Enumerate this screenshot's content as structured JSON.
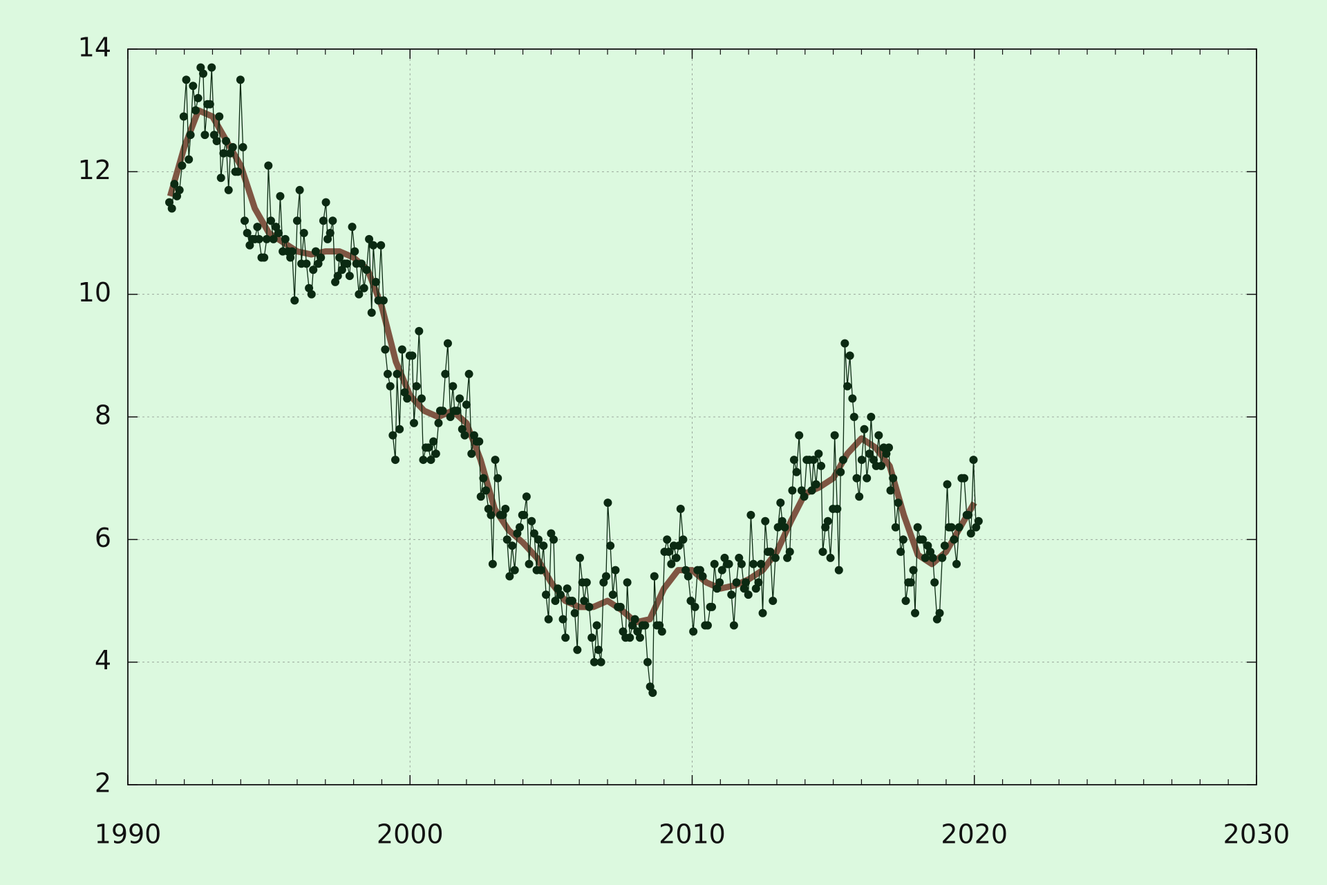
{
  "chart_data": {
    "type": "line",
    "xlim": [
      1990,
      2030
    ],
    "xticks": [
      1990,
      2000,
      2010,
      2020,
      2030
    ],
    "ylim": [
      2,
      14
    ],
    "yticks": [
      2,
      4,
      6,
      8,
      10,
      12,
      14
    ],
    "grid": true,
    "series": [
      {
        "color": "#0b2a12",
        "markers": true,
        "x": [
          1991.47,
          1991.56,
          1991.65,
          1991.74,
          1991.83,
          1991.92,
          1991.98,
          1992.07,
          1992.16,
          1992.22,
          1992.31,
          1992.4,
          1992.49,
          1992.58,
          1992.67,
          1992.73,
          1992.82,
          1992.91,
          1992.97,
          1993.06,
          1993.15,
          1993.24,
          1993.3,
          1993.39,
          1993.48,
          1993.57,
          1993.63,
          1993.72,
          1993.81,
          1993.9,
          1993.99,
          1994.08,
          1994.14,
          1994.23,
          1994.32,
          1994.41,
          1994.5,
          1994.59,
          1994.65,
          1994.74,
          1994.83,
          1994.92,
          1994.98,
          1995.07,
          1995.16,
          1995.25,
          1995.34,
          1995.4,
          1995.49,
          1995.58,
          1995.67,
          1995.76,
          1995.82,
          1995.91,
          1996.0,
          1996.09,
          1996.15,
          1996.24,
          1996.33,
          1996.42,
          1996.51,
          1996.57,
          1996.66,
          1996.75,
          1996.84,
          1996.93,
          1997.02,
          1997.08,
          1997.17,
          1997.26,
          1997.35,
          1997.44,
          1997.5,
          1997.59,
          1997.68,
          1997.77,
          1997.86,
          1997.95,
          1998.04,
          1998.1,
          1998.19,
          1998.28,
          1998.37,
          1998.46,
          1998.55,
          1998.64,
          1998.7,
          1998.79,
          1998.88,
          1998.97,
          1999.06,
          1999.12,
          1999.21,
          1999.3,
          1999.39,
          1999.48,
          1999.54,
          1999.63,
          1999.72,
          1999.81,
          1999.9,
          1999.99,
          2000.08,
          2000.14,
          2000.23,
          2000.32,
          2000.41,
          2000.47,
          2000.56,
          2000.65,
          2000.74,
          2000.83,
          2000.92,
          2001.01,
          2001.07,
          2001.16,
          2001.25,
          2001.34,
          2001.43,
          2001.52,
          2001.58,
          2001.67,
          2001.76,
          2001.85,
          2001.94,
          2002.0,
          2002.09,
          2002.18,
          2002.27,
          2002.36,
          2002.45,
          2002.51,
          2002.6,
          2002.69,
          2002.78,
          2002.87,
          2002.93,
          2003.02,
          2003.11,
          2003.2,
          2003.29,
          2003.38,
          2003.44,
          2003.53,
          2003.62,
          2003.71,
          2003.8,
          2003.89,
          2003.98,
          2004.04,
          2004.13,
          2004.22,
          2004.31,
          2004.4,
          2004.49,
          2004.55,
          2004.64,
          2004.73,
          2004.82,
          2004.91,
          2005.0,
          2005.09,
          2005.15,
          2005.24,
          2005.33,
          2005.42,
          2005.51,
          2005.57,
          2005.66,
          2005.75,
          2005.84,
          2005.93,
          2006.02,
          2006.11,
          2006.17,
          2006.26,
          2006.35,
          2006.44,
          2006.53,
          2006.62,
          2006.68,
          2006.77,
          2006.86,
          2006.95,
          2007.01,
          2007.1,
          2007.19,
          2007.28,
          2007.37,
          2007.46,
          2007.55,
          2007.64,
          2007.7,
          2007.79,
          2007.88,
          2007.97,
          2008.06,
          2008.15,
          2008.24,
          2008.33,
          2008.42,
          2008.51,
          2008.6,
          2008.66,
          2008.75,
          2008.84,
          2008.93,
          2009.02,
          2009.11,
          2009.17,
          2009.26,
          2009.35,
          2009.44,
          2009.53,
          2009.59,
          2009.68,
          2009.77,
          2009.86,
          2009.95,
          2010.04,
          2010.1,
          2010.19,
          2010.28,
          2010.37,
          2010.46,
          2010.55,
          2010.64,
          2010.7,
          2010.79,
          2010.88,
          2010.97,
          2011.06,
          2011.15,
          2011.24,
          2011.3,
          2011.39,
          2011.48,
          2011.57,
          2011.66,
          2011.75,
          2011.84,
          2011.9,
          2011.99,
          2012.08,
          2012.17,
          2012.26,
          2012.35,
          2012.44,
          2012.5,
          2012.59,
          2012.68,
          2012.77,
          2012.86,
          2012.95,
          2013.04,
          2013.13,
          2013.19,
          2013.28,
          2013.37,
          2013.46,
          2013.55,
          2013.61,
          2013.7,
          2013.79,
          2013.88,
          2013.97,
          2014.06,
          2014.15,
          2014.24,
          2014.3,
          2014.39,
          2014.48,
          2014.57,
          2014.63,
          2014.72,
          2014.81,
          2014.9,
          2014.99,
          2015.05,
          2015.14,
          2015.2,
          2015.26,
          2015.35,
          2015.41,
          2015.5,
          2015.59,
          2015.68,
          2015.74,
          2015.83,
          2015.92,
          2016.01,
          2016.1,
          2016.19,
          2016.28,
          2016.34,
          2016.43,
          2016.52,
          2016.61,
          2016.7,
          2016.79,
          2016.88,
          2016.97,
          2017.03,
          2017.12,
          2017.21,
          2017.3,
          2017.39,
          2017.48,
          2017.57,
          2017.66,
          2017.75,
          2017.84,
          2017.9,
          2017.99,
          2018.08,
          2018.17,
          2018.26,
          2018.35,
          2018.44,
          2018.53,
          2018.59,
          2018.68,
          2018.77,
          2018.86,
          2018.95,
          2019.04,
          2019.1,
          2019.19,
          2019.28,
          2019.37,
          2019.46,
          2019.55,
          2019.64,
          2019.73,
          2019.79,
          2019.88,
          2019.97,
          2020.06,
          2020.15
        ],
        "values": [
          11.5,
          11.4,
          11.8,
          11.6,
          11.7,
          12.1,
          12.9,
          13.5,
          12.2,
          12.6,
          13.4,
          13.0,
          13.2,
          13.7,
          13.6,
          12.6,
          13.1,
          13.1,
          13.7,
          12.6,
          12.5,
          12.9,
          11.9,
          12.3,
          12.5,
          11.7,
          12.3,
          12.4,
          12.0,
          12.0,
          13.5,
          12.4,
          11.2,
          11.0,
          10.8,
          10.9,
          10.9,
          11.1,
          10.9,
          10.6,
          10.6,
          10.9,
          12.1,
          11.2,
          10.9,
          11.1,
          11.0,
          11.6,
          10.7,
          10.9,
          10.7,
          10.6,
          10.7,
          9.9,
          11.2,
          11.7,
          10.5,
          11.0,
          10.5,
          10.1,
          10.0,
          10.4,
          10.7,
          10.5,
          10.6,
          11.2,
          11.5,
          10.9,
          11.0,
          11.2,
          10.2,
          10.3,
          10.6,
          10.4,
          10.5,
          10.5,
          10.3,
          11.1,
          10.7,
          10.5,
          10.0,
          10.5,
          10.1,
          10.4,
          10.9,
          9.7,
          10.8,
          10.2,
          9.9,
          10.8,
          9.9,
          9.1,
          8.7,
          8.5,
          7.7,
          7.3,
          8.7,
          7.8,
          9.1,
          8.4,
          8.3,
          9.0,
          9.0,
          7.9,
          8.5,
          9.4,
          8.3,
          7.3,
          7.5,
          7.5,
          7.3,
          7.6,
          7.4,
          7.9,
          8.1,
          8.1,
          8.7,
          9.2,
          8.0,
          8.5,
          8.1,
          8.1,
          8.3,
          7.8,
          7.7,
          8.2,
          8.7,
          7.4,
          7.7,
          7.6,
          7.6,
          6.7,
          7.0,
          6.8,
          6.5,
          6.4,
          5.6,
          7.3,
          7.0,
          6.4,
          6.4,
          6.5,
          6.0,
          5.4,
          5.9,
          5.5,
          6.1,
          6.2,
          6.4,
          6.4,
          6.7,
          5.6,
          6.3,
          6.1,
          5.5,
          6.0,
          5.5,
          5.9,
          5.1,
          4.7,
          6.1,
          6.0,
          5.0,
          5.2,
          5.1,
          4.7,
          4.4,
          5.2,
          5.0,
          5.0,
          4.8,
          4.2,
          5.7,
          5.3,
          5.0,
          5.3,
          4.9,
          4.4,
          4.0,
          4.6,
          4.2,
          4.0,
          5.3,
          5.4,
          6.6,
          5.9,
          5.1,
          5.5,
          4.9,
          4.9,
          4.5,
          4.4,
          5.3,
          4.4,
          4.6,
          4.7,
          4.5,
          4.4,
          4.6,
          4.6,
          4.0,
          3.6,
          3.5,
          5.4,
          4.6,
          4.6,
          4.5,
          5.8,
          6.0,
          5.8,
          5.6,
          5.9,
          5.7,
          5.9,
          6.5,
          6.0,
          5.5,
          5.4,
          5.0,
          4.5,
          4.9,
          5.5,
          5.5,
          5.4,
          4.6,
          4.6,
          4.9,
          4.9,
          5.6,
          5.2,
          5.3,
          5.5,
          5.7,
          5.6,
          5.6,
          5.1,
          4.6,
          5.3,
          5.7,
          5.6,
          5.2,
          5.3,
          5.1,
          6.4,
          5.6,
          5.2,
          5.3,
          5.6,
          4.8,
          6.3,
          5.8,
          5.8,
          5.0,
          5.7,
          6.2,
          6.6,
          6.3,
          6.2,
          5.7,
          5.8,
          6.8,
          7.3,
          7.1,
          7.7,
          6.8,
          6.7,
          7.3,
          7.3,
          6.8,
          7.3,
          6.9,
          7.4,
          7.2,
          5.8,
          6.2,
          6.3,
          5.7,
          6.5,
          7.7,
          6.5,
          5.5,
          7.1,
          7.3,
          9.2,
          8.5,
          9.0,
          8.3,
          8.0,
          7.0,
          6.7,
          7.3,
          7.8,
          7.0,
          7.4,
          8.0,
          7.3,
          7.2,
          7.7,
          7.2,
          7.5,
          7.4,
          7.5,
          6.8,
          7.0,
          6.2,
          6.6,
          5.8,
          6.0,
          5.0,
          5.3,
          5.3,
          5.5,
          4.8,
          6.2,
          6.0,
          6.0,
          5.7,
          5.9,
          5.8,
          5.7,
          5.3,
          4.7,
          4.8,
          5.7,
          5.9,
          6.9,
          6.2,
          6.2,
          6.0,
          5.6,
          6.2,
          7.0,
          7.0,
          6.4,
          6.4,
          6.1,
          7.3,
          6.2,
          6.3
        ]
      },
      {
        "color": "#6e3a28",
        "markers": false,
        "x": [
          1991.5,
          1992,
          1992.5,
          1993,
          1993.5,
          1994,
          1994.5,
          1995,
          1995.5,
          1996,
          1996.5,
          1997,
          1997.5,
          1998,
          1998.5,
          1999,
          1999.5,
          2000,
          2000.5,
          2001,
          2001.5,
          2002,
          2002.5,
          2003,
          2003.5,
          2004,
          2004.5,
          2005,
          2005.5,
          2006,
          2006.5,
          2007,
          2007.5,
          2008,
          2008.5,
          2009,
          2009.5,
          2010,
          2010.5,
          2011,
          2011.5,
          2012,
          2012.5,
          2013,
          2013.5,
          2014,
          2014.5,
          2015,
          2015.5,
          2016,
          2016.5,
          2017,
          2017.5,
          2018,
          2018.5,
          2019,
          2019.5,
          2020
        ],
        "values": [
          11.6,
          12.4,
          13.0,
          12.9,
          12.5,
          12.1,
          11.4,
          11.0,
          10.85,
          10.7,
          10.65,
          10.7,
          10.7,
          10.6,
          10.4,
          9.8,
          8.9,
          8.35,
          8.1,
          8.0,
          8.1,
          7.9,
          7.3,
          6.5,
          6.15,
          5.95,
          5.7,
          5.3,
          5.0,
          4.9,
          4.9,
          5.0,
          4.85,
          4.65,
          4.7,
          5.2,
          5.5,
          5.5,
          5.3,
          5.2,
          5.25,
          5.35,
          5.5,
          5.8,
          6.3,
          6.75,
          6.85,
          7.0,
          7.4,
          7.65,
          7.5,
          7.2,
          6.4,
          5.75,
          5.6,
          5.8,
          6.2,
          6.6
        ]
      }
    ]
  }
}
